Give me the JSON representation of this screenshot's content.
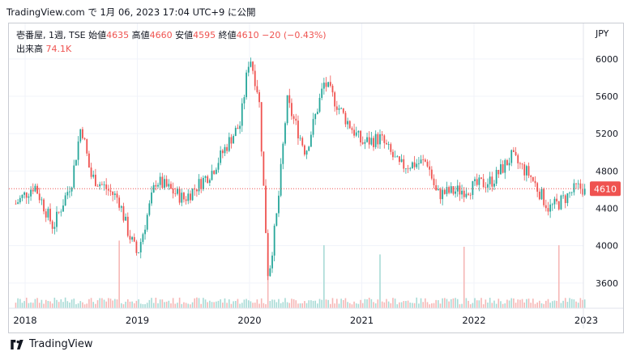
{
  "header": {
    "source": "TradingView.com",
    "text": "で 1月 06, 2023 17:04 UTC+9 に公開"
  },
  "legend": {
    "symbol": "壱番屋, 1週, TSE",
    "open_label": "始値",
    "open": "4635",
    "high_label": "高値",
    "high": "4660",
    "low_label": "安値",
    "low": "4595",
    "close_label": "終値",
    "close": "4610",
    "change": "−20 (−0.43%)",
    "volume_label": "出来高",
    "volume": "74.1K"
  },
  "footer": {
    "brand": "TradingView"
  },
  "colors": {
    "up": "#26a69a",
    "down": "#ef5350",
    "vol_up": "#a8dbd6",
    "vol_down": "#f6b7b6"
  },
  "chart_data": {
    "type": "candlestick",
    "currency": "JPY",
    "x_ticks": [
      "2018",
      "2019",
      "2020",
      "2021",
      "2022",
      "2023"
    ],
    "y_ticks": [
      3600,
      4000,
      4400,
      4800,
      5200,
      5600,
      6000
    ],
    "ylim": [
      3330,
      6380
    ],
    "last_price": 4610,
    "last_price_label": "4610",
    "key_points": [
      {
        "date": "2017-12",
        "price": 4450
      },
      {
        "date": "2018-02",
        "price": 4650
      },
      {
        "date": "2018-04",
        "price": 4200
      },
      {
        "date": "2018-06",
        "price": 4700
      },
      {
        "date": "2018-07",
        "price": 5300
      },
      {
        "date": "2018-08",
        "price": 4750
      },
      {
        "date": "2018-11",
        "price": 4500
      },
      {
        "date": "2018-12",
        "price": 4150
      },
      {
        "date": "2019-01",
        "price": 3900
      },
      {
        "date": "2019-03",
        "price": 4700
      },
      {
        "date": "2019-06",
        "price": 4500
      },
      {
        "date": "2019-09",
        "price": 4800
      },
      {
        "date": "2019-11",
        "price": 5150
      },
      {
        "date": "2019-12",
        "price": 5300
      },
      {
        "date": "2020-01",
        "price": 6050
      },
      {
        "date": "2020-02",
        "price": 5600
      },
      {
        "date": "2020-03",
        "price": 3650
      },
      {
        "date": "2020-04",
        "price": 4400
      },
      {
        "date": "2020-05",
        "price": 5550
      },
      {
        "date": "2020-07",
        "price": 5000
      },
      {
        "date": "2020-09",
        "price": 5750
      },
      {
        "date": "2020-11",
        "price": 5400
      },
      {
        "date": "2021-01",
        "price": 5100
      },
      {
        "date": "2021-03",
        "price": 5150
      },
      {
        "date": "2021-05",
        "price": 4850
      },
      {
        "date": "2021-08",
        "price": 4900
      },
      {
        "date": "2021-09",
        "price": 4550
      },
      {
        "date": "2021-12",
        "price": 4600
      },
      {
        "date": "2022-03",
        "price": 4700
      },
      {
        "date": "2022-05",
        "price": 4950
      },
      {
        "date": "2022-07",
        "price": 4750
      },
      {
        "date": "2022-09",
        "price": 4400
      },
      {
        "date": "2022-10",
        "price": 4450
      },
      {
        "date": "2022-12",
        "price": 4620
      },
      {
        "date": "2023-01",
        "price": 4610
      }
    ],
    "volume_spikes": [
      {
        "date": "2018-11",
        "volume_rel": 0.88
      },
      {
        "date": "2020-03",
        "volume_rel": 0.72
      },
      {
        "date": "2020-09",
        "volume_rel": 0.82
      },
      {
        "date": "2021-03",
        "volume_rel": 0.7
      },
      {
        "date": "2021-12",
        "volume_rel": 0.8
      },
      {
        "date": "2022-10",
        "volume_rel": 0.82
      }
    ]
  }
}
